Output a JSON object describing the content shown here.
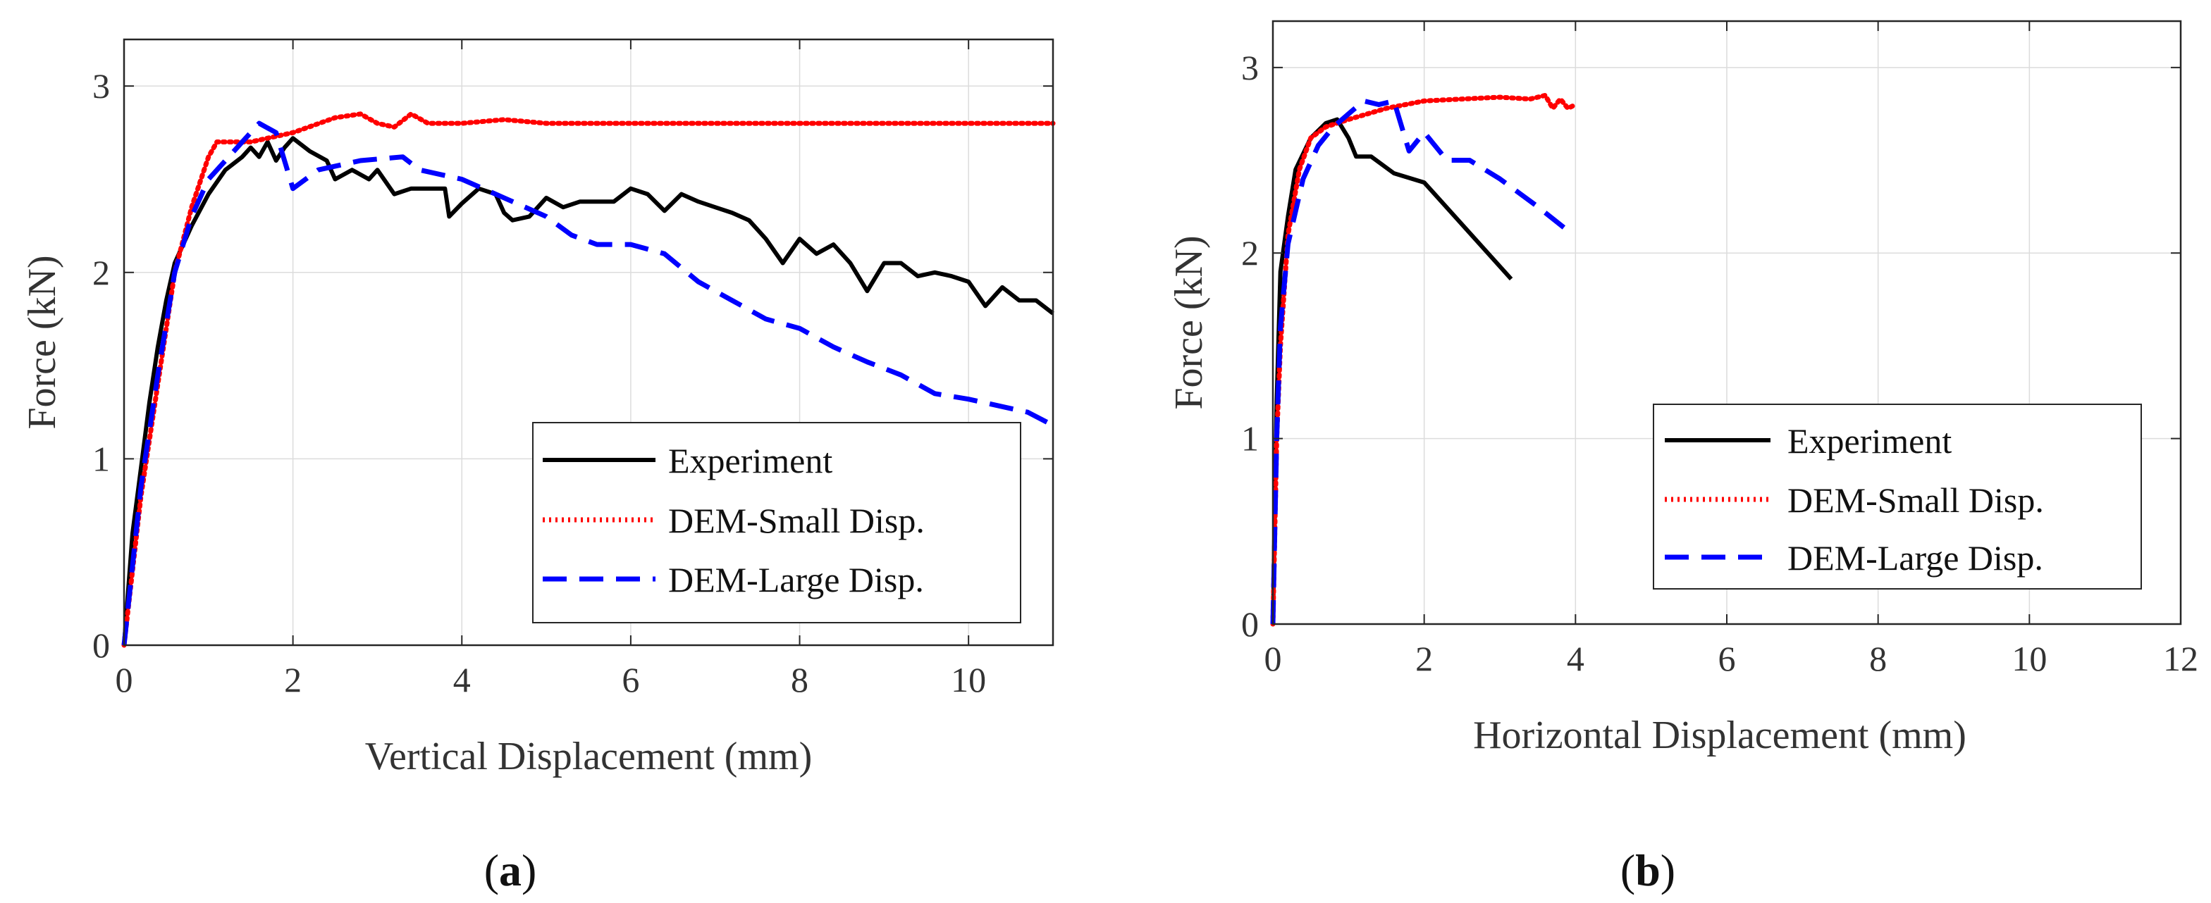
{
  "chart_data": [
    {
      "type": "line",
      "caption": "a",
      "title": "",
      "xlabel": "Vertical Displacement (mm)",
      "ylabel": "Force (kN)",
      "xlim": [
        0,
        11
      ],
      "ylim": [
        0,
        3.25
      ],
      "xticks": [
        0,
        2,
        4,
        6,
        8,
        10
      ],
      "yticks": [
        0,
        1,
        2,
        3
      ],
      "grid": true,
      "legend_position": "bottom-right",
      "series": [
        {
          "name": "Experiment",
          "color": "#000000",
          "style": "solid",
          "points": [
            [
              0,
              0
            ],
            [
              0.1,
              0.6
            ],
            [
              0.2,
              0.95
            ],
            [
              0.3,
              1.3
            ],
            [
              0.4,
              1.6
            ],
            [
              0.5,
              1.85
            ],
            [
              0.6,
              2.05
            ],
            [
              0.8,
              2.25
            ],
            [
              1.0,
              2.42
            ],
            [
              1.2,
              2.55
            ],
            [
              1.4,
              2.62
            ],
            [
              1.5,
              2.67
            ],
            [
              1.6,
              2.62
            ],
            [
              1.7,
              2.7
            ],
            [
              1.8,
              2.6
            ],
            [
              1.9,
              2.67
            ],
            [
              2.0,
              2.72
            ],
            [
              2.2,
              2.65
            ],
            [
              2.4,
              2.6
            ],
            [
              2.5,
              2.5
            ],
            [
              2.7,
              2.55
            ],
            [
              2.9,
              2.5
            ],
            [
              3.0,
              2.55
            ],
            [
              3.2,
              2.42
            ],
            [
              3.4,
              2.45
            ],
            [
              3.6,
              2.45
            ],
            [
              3.8,
              2.45
            ],
            [
              3.85,
              2.3
            ],
            [
              4.0,
              2.37
            ],
            [
              4.2,
              2.45
            ],
            [
              4.4,
              2.42
            ],
            [
              4.5,
              2.32
            ],
            [
              4.6,
              2.28
            ],
            [
              4.8,
              2.3
            ],
            [
              5.0,
              2.4
            ],
            [
              5.2,
              2.35
            ],
            [
              5.4,
              2.38
            ],
            [
              5.6,
              2.38
            ],
            [
              5.8,
              2.38
            ],
            [
              6.0,
              2.45
            ],
            [
              6.2,
              2.42
            ],
            [
              6.4,
              2.33
            ],
            [
              6.6,
              2.42
            ],
            [
              6.8,
              2.38
            ],
            [
              7.0,
              2.35
            ],
            [
              7.2,
              2.32
            ],
            [
              7.4,
              2.28
            ],
            [
              7.6,
              2.18
            ],
            [
              7.8,
              2.05
            ],
            [
              8.0,
              2.18
            ],
            [
              8.2,
              2.1
            ],
            [
              8.4,
              2.15
            ],
            [
              8.6,
              2.05
            ],
            [
              8.8,
              1.9
            ],
            [
              9.0,
              2.05
            ],
            [
              9.2,
              2.05
            ],
            [
              9.4,
              1.98
            ],
            [
              9.6,
              2.0
            ],
            [
              9.8,
              1.98
            ],
            [
              10.0,
              1.95
            ],
            [
              10.2,
              1.82
            ],
            [
              10.4,
              1.92
            ],
            [
              10.6,
              1.85
            ],
            [
              10.8,
              1.85
            ],
            [
              11.0,
              1.78
            ]
          ]
        },
        {
          "name": "DEM-Small Disp.",
          "color": "#ff0000",
          "style": "dotted",
          "points": [
            [
              0,
              0
            ],
            [
              0.2,
              0.8
            ],
            [
              0.4,
              1.4
            ],
            [
              0.6,
              2.0
            ],
            [
              0.8,
              2.35
            ],
            [
              1.0,
              2.62
            ],
            [
              1.1,
              2.7
            ],
            [
              1.5,
              2.7
            ],
            [
              2.0,
              2.75
            ],
            [
              2.5,
              2.83
            ],
            [
              2.8,
              2.85
            ],
            [
              3.0,
              2.8
            ],
            [
              3.2,
              2.78
            ],
            [
              3.4,
              2.85
            ],
            [
              3.6,
              2.8
            ],
            [
              4.0,
              2.8
            ],
            [
              4.5,
              2.82
            ],
            [
              5.0,
              2.8
            ],
            [
              6.0,
              2.8
            ],
            [
              7.0,
              2.8
            ],
            [
              8.0,
              2.8
            ],
            [
              9.0,
              2.8
            ],
            [
              10.0,
              2.8
            ],
            [
              11.0,
              2.8
            ]
          ]
        },
        {
          "name": "DEM-Large Disp.",
          "color": "#0000ff",
          "style": "dashed",
          "points": [
            [
              0,
              0
            ],
            [
              0.2,
              0.85
            ],
            [
              0.4,
              1.45
            ],
            [
              0.6,
              2.0
            ],
            [
              0.8,
              2.3
            ],
            [
              1.0,
              2.5
            ],
            [
              1.2,
              2.6
            ],
            [
              1.4,
              2.7
            ],
            [
              1.6,
              2.8
            ],
            [
              1.8,
              2.75
            ],
            [
              2.0,
              2.45
            ],
            [
              2.3,
              2.55
            ],
            [
              2.8,
              2.6
            ],
            [
              3.3,
              2.62
            ],
            [
              3.5,
              2.55
            ],
            [
              4.0,
              2.5
            ],
            [
              4.5,
              2.4
            ],
            [
              5.0,
              2.3
            ],
            [
              5.3,
              2.2
            ],
            [
              5.6,
              2.15
            ],
            [
              6.0,
              2.15
            ],
            [
              6.4,
              2.1
            ],
            [
              6.8,
              1.95
            ],
            [
              7.2,
              1.85
            ],
            [
              7.6,
              1.75
            ],
            [
              8.0,
              1.7
            ],
            [
              8.4,
              1.6
            ],
            [
              8.8,
              1.52
            ],
            [
              9.2,
              1.45
            ],
            [
              9.6,
              1.35
            ],
            [
              10.0,
              1.32
            ],
            [
              10.4,
              1.28
            ],
            [
              10.7,
              1.25
            ],
            [
              11.0,
              1.18
            ]
          ]
        }
      ]
    },
    {
      "type": "line",
      "caption": "b",
      "title": "",
      "xlabel": "Horizontal Displacement (mm)",
      "ylabel": "Force (kN)",
      "xlim": [
        0,
        12
      ],
      "ylim": [
        0,
        3.25
      ],
      "xticks": [
        0,
        2,
        4,
        6,
        8,
        10,
        12
      ],
      "yticks": [
        0,
        1,
        2,
        3
      ],
      "grid": true,
      "legend_position": "bottom-right",
      "series": [
        {
          "name": "Experiment",
          "color": "#000000",
          "style": "solid",
          "points": [
            [
              0,
              0
            ],
            [
              0.05,
              1.2
            ],
            [
              0.1,
              1.9
            ],
            [
              0.2,
              2.2
            ],
            [
              0.3,
              2.45
            ],
            [
              0.5,
              2.62
            ],
            [
              0.7,
              2.7
            ],
            [
              0.85,
              2.72
            ],
            [
              1.0,
              2.62
            ],
            [
              1.1,
              2.52
            ],
            [
              1.3,
              2.52
            ],
            [
              1.6,
              2.43
            ],
            [
              2.0,
              2.38
            ],
            [
              3.15,
              1.86
            ]
          ]
        },
        {
          "name": "DEM-Small Disp.",
          "color": "#ff0000",
          "style": "dotted",
          "points": [
            [
              0,
              0
            ],
            [
              0.05,
              1.0
            ],
            [
              0.1,
              1.5
            ],
            [
              0.2,
              2.1
            ],
            [
              0.35,
              2.45
            ],
            [
              0.5,
              2.62
            ],
            [
              0.7,
              2.68
            ],
            [
              1.0,
              2.72
            ],
            [
              1.5,
              2.78
            ],
            [
              2.0,
              2.82
            ],
            [
              2.5,
              2.83
            ],
            [
              3.0,
              2.84
            ],
            [
              3.4,
              2.83
            ],
            [
              3.6,
              2.85
            ],
            [
              3.7,
              2.78
            ],
            [
              3.8,
              2.83
            ],
            [
              3.9,
              2.78
            ],
            [
              4.0,
              2.8
            ]
          ]
        },
        {
          "name": "DEM-Large Disp.",
          "color": "#0000ff",
          "style": "dashed",
          "points": [
            [
              0,
              0
            ],
            [
              0.05,
              1.0
            ],
            [
              0.1,
              1.6
            ],
            [
              0.2,
              2.05
            ],
            [
              0.4,
              2.4
            ],
            [
              0.6,
              2.58
            ],
            [
              0.8,
              2.68
            ],
            [
              1.0,
              2.75
            ],
            [
              1.2,
              2.82
            ],
            [
              1.4,
              2.8
            ],
            [
              1.6,
              2.82
            ],
            [
              1.8,
              2.55
            ],
            [
              2.0,
              2.65
            ],
            [
              2.3,
              2.5
            ],
            [
              2.6,
              2.5
            ],
            [
              3.0,
              2.4
            ],
            [
              3.5,
              2.25
            ],
            [
              3.9,
              2.12
            ]
          ]
        }
      ]
    }
  ]
}
